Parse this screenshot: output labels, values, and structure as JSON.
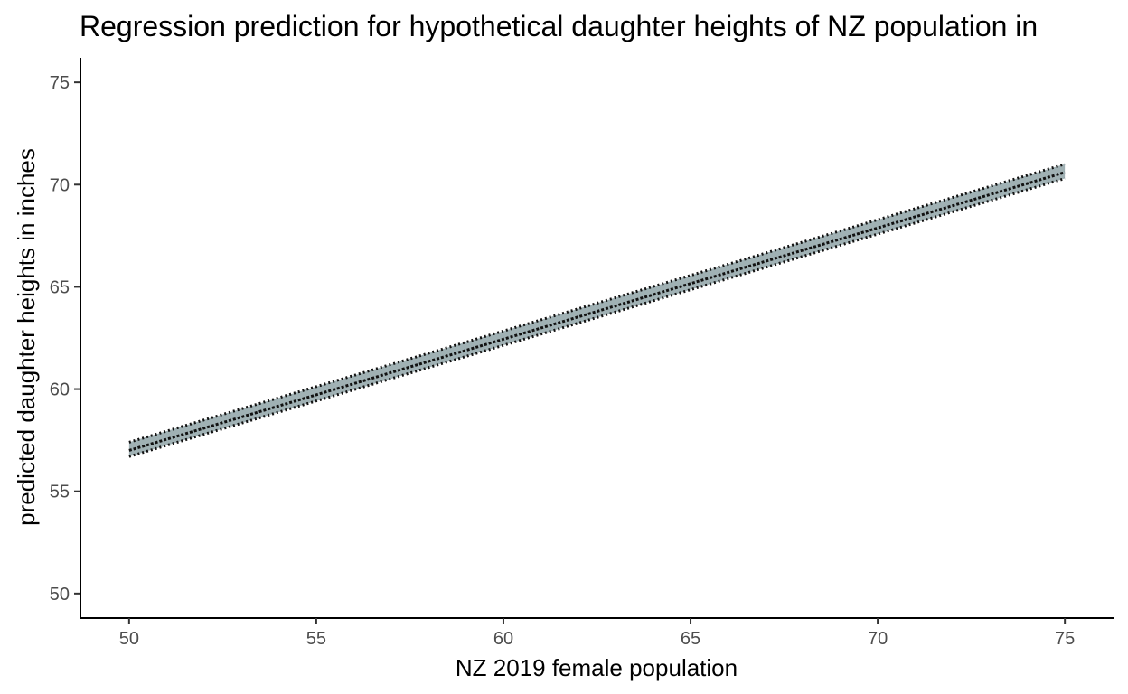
{
  "chart_data": {
    "type": "line",
    "title": "Regression prediction for hypothetical daughter heights of NZ population in",
    "xlabel": "NZ 2019 female population",
    "ylabel": "predicted daughter heights in inches",
    "xlim": [
      48.7,
      76.3
    ],
    "ylim": [
      48.8,
      76.2
    ],
    "x_ticks": [
      50,
      55,
      60,
      65,
      70,
      75
    ],
    "x_tick_labels": [
      "50",
      "55",
      "60",
      "65",
      "70",
      "75"
    ],
    "y_ticks": [
      50,
      55,
      60,
      65,
      70,
      75
    ],
    "y_tick_labels": [
      "50",
      "55",
      "60",
      "65",
      "70",
      "75"
    ],
    "grid": false,
    "legend": "none",
    "series": [
      {
        "x": [
          50,
          75
        ],
        "y": [
          57.0,
          70.6
        ],
        "upper": [
          57.4,
          71.0
        ],
        "lower": [
          56.7,
          70.3
        ]
      }
    ],
    "colors": {
      "band_fill": "#8fa3a7",
      "line": "#111111",
      "axis": "#000000",
      "tick_label": "#4d4d4d"
    }
  }
}
